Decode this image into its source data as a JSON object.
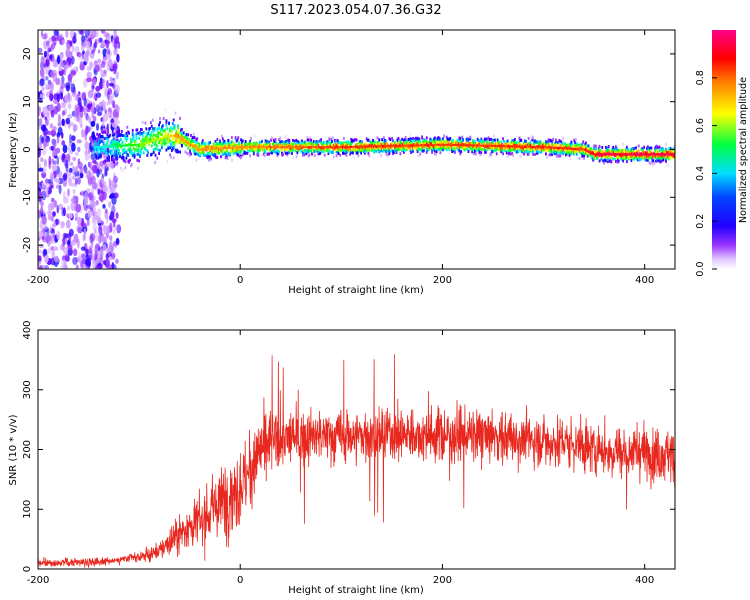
{
  "title": "S117.2023.054.07.36.G32",
  "chart_data": [
    {
      "type": "heatmap",
      "panel": "spectrogram",
      "xlabel": "Height of straight line (km)",
      "ylabel": "Frequency (Hz)",
      "xlim": [
        -200,
        430
      ],
      "ylim": [
        -25,
        25
      ],
      "xticks": [
        -200,
        0,
        200,
        400
      ],
      "yticks": [
        -20,
        -10,
        0,
        10,
        20
      ],
      "colorbar": {
        "label": "Normalized spectral amplitude",
        "range": [
          0,
          1
        ],
        "ticks": [
          "0.0",
          "0.2",
          "0.4",
          "0.6",
          "0.8"
        ],
        "colormap": [
          "#ffffff",
          "#cc99ff",
          "#7a00ff",
          "#0000ff",
          "#00ffff",
          "#00ff00",
          "#ffff00",
          "#ff8000",
          "#ff0000",
          "#ff0080"
        ]
      },
      "signal_ridge": {
        "x": [
          -140,
          -100,
          -70,
          -60,
          -50,
          -40,
          0,
          100,
          200,
          300,
          340,
          350,
          430
        ],
        "y": [
          0.5,
          1,
          3,
          2.5,
          1,
          0,
          0.5,
          0.5,
          1,
          0.5,
          0,
          -1,
          -1
        ],
        "peak_amplitude": [
          0.4,
          0.6,
          0.7,
          0.8,
          0.8,
          0.8,
          0.8,
          0.9,
          0.9,
          0.9,
          0.9,
          1,
          1
        ]
      },
      "noise_region_x": [
        -200,
        -130
      ]
    },
    {
      "type": "line",
      "panel": "snr",
      "xlabel": "Height of straight line (km)",
      "ylabel": "SNR (10 * v/v)",
      "xlim": [
        -200,
        430
      ],
      "ylim": [
        0,
        400
      ],
      "xticks": [
        -200,
        0,
        200,
        400
      ],
      "yticks": [
        0,
        100,
        200,
        300,
        400
      ],
      "color": "#e8281e",
      "series": [
        {
          "x": [
            -200,
            -150,
            -120,
            -100,
            -80,
            -60,
            -40,
            -20,
            0,
            10,
            20,
            30,
            50,
            100,
            150,
            200,
            250,
            300,
            330,
            350,
            400,
            430
          ],
          "y": [
            10,
            12,
            15,
            20,
            30,
            60,
            80,
            110,
            140,
            160,
            200,
            215,
            220,
            222,
            225,
            225,
            222,
            215,
            210,
            200,
            195,
            190
          ]
        }
      ]
    }
  ]
}
